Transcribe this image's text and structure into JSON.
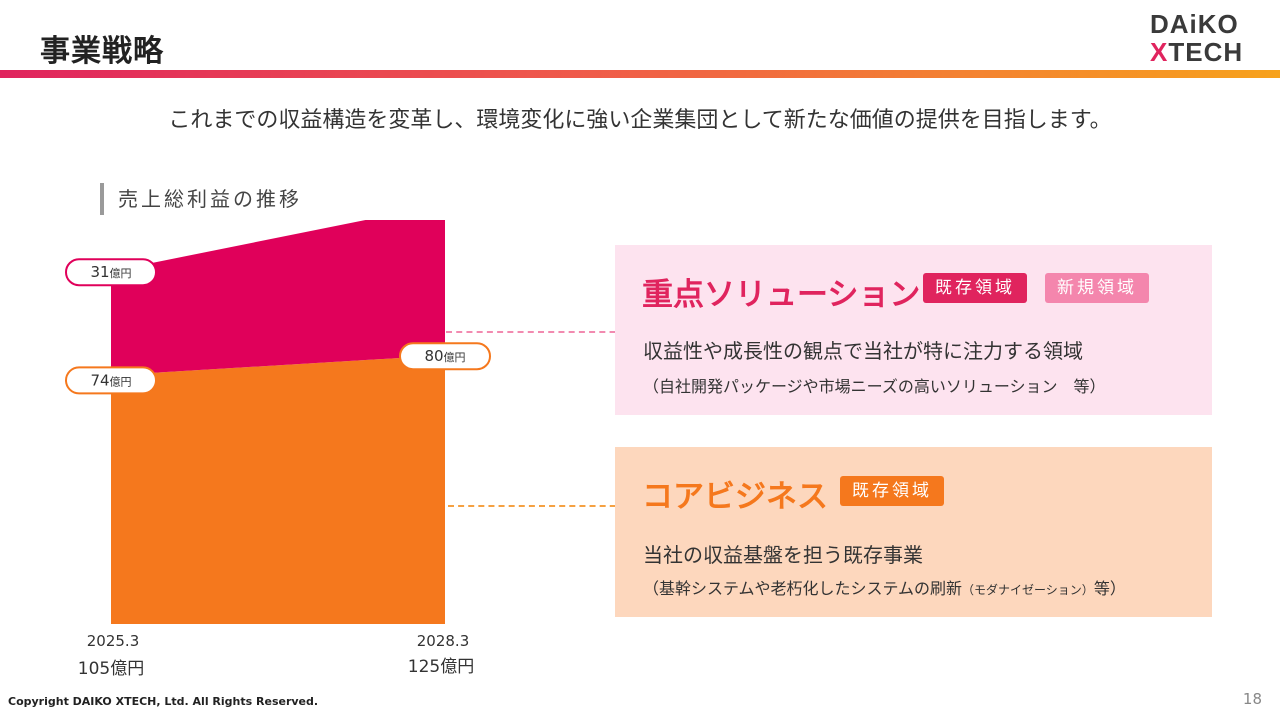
{
  "header": {
    "title": "事業戦略",
    "logo_line1": "DAiKO",
    "logo_line2_x": "X",
    "logo_line2_rest": "TECH"
  },
  "lead_text": "これまでの収益構造を変革し、環境変化に強い企業集団として新たな価値の提供を目指します。",
  "chart_heading": "売上総利益の推移",
  "chart_data": {
    "type": "area",
    "title": "売上総利益の推移",
    "unit": "億円",
    "categories": [
      "2025.3",
      "2028.3"
    ],
    "totals": [
      105,
      125
    ],
    "total_labels": [
      "105億円",
      "125億円"
    ],
    "series": [
      {
        "name": "コアビジネス",
        "values": [
          74,
          80
        ],
        "color": "#f5781d"
      },
      {
        "name": "重点ソリューション",
        "values": [
          31,
          45
        ],
        "color": "#e0005a"
      }
    ],
    "ylim": [
      0,
      125
    ]
  },
  "panels": {
    "focus": {
      "title": "重点ソリューション",
      "tag_existing": "既存領域",
      "tag_new": "新規領域",
      "description": "収益性や成長性の観点で当社が特に注力する領域",
      "examples": "（自社開発パッケージや市場ニーズの高いソリューション　等）"
    },
    "core": {
      "title": "コアビジネス",
      "tag_existing": "既存領域",
      "description": "当社の収益基盤を担う既存事業",
      "examples_main": "（基幹システムや老朽化したシステムの刷新",
      "examples_small": "（モダナイゼーション）",
      "examples_end": "等）"
    }
  },
  "footer": {
    "copyright": "Copyright DAIKO XTECH, Ltd. All Rights Reserved.",
    "page_number": "18"
  }
}
